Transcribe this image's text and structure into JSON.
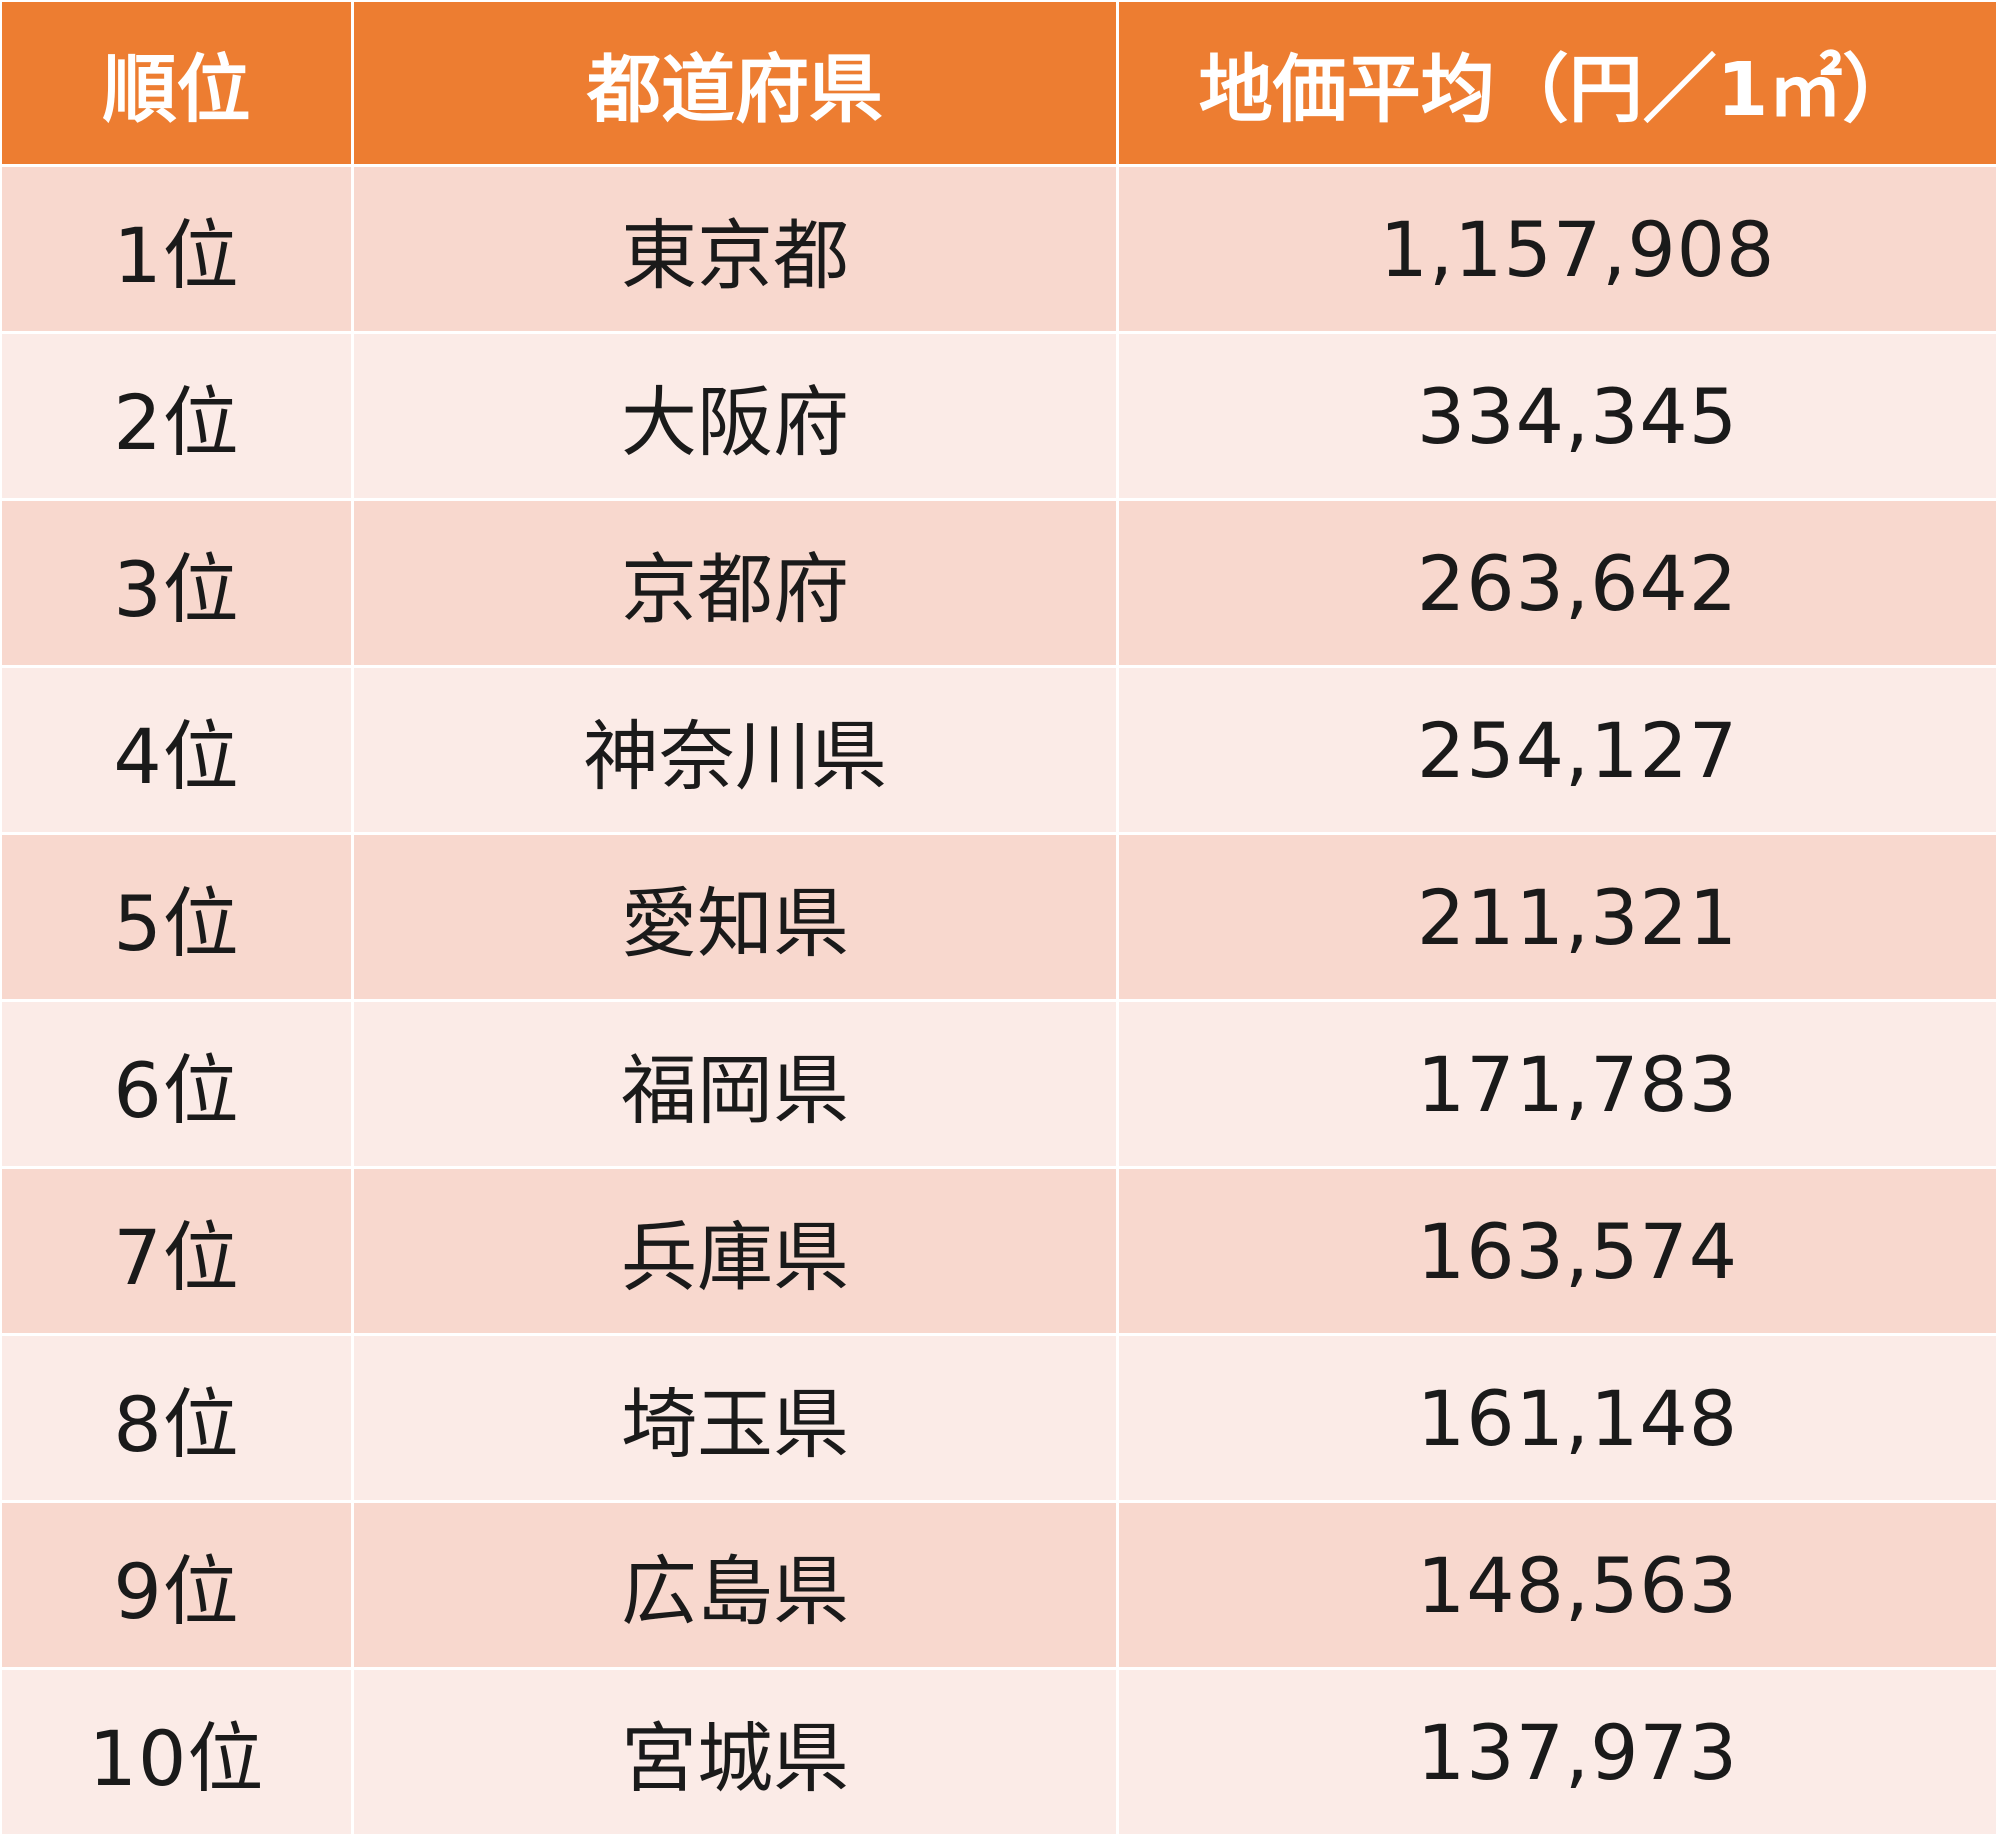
{
  "table": {
    "headers": {
      "rank": "順位",
      "prefecture": "都道府県",
      "price": "地価平均（円／1㎡）"
    },
    "rows": [
      {
        "rank": "1位",
        "prefecture": "東京都",
        "price": "1,157,908"
      },
      {
        "rank": "2位",
        "prefecture": "大阪府",
        "price": "334,345"
      },
      {
        "rank": "3位",
        "prefecture": "京都府",
        "price": "263,642"
      },
      {
        "rank": "4位",
        "prefecture": "神奈川県",
        "price": "254,127"
      },
      {
        "rank": "5位",
        "prefecture": "愛知県",
        "price": "211,321"
      },
      {
        "rank": "6位",
        "prefecture": "福岡県",
        "price": "171,783"
      },
      {
        "rank": "7位",
        "prefecture": "兵庫県",
        "price": "163,574"
      },
      {
        "rank": "8位",
        "prefecture": "埼玉県",
        "price": "161,148"
      },
      {
        "rank": "9位",
        "prefecture": "広島県",
        "price": "148,563"
      },
      {
        "rank": "10位",
        "prefecture": "宮城県",
        "price": "137,973"
      }
    ]
  },
  "colors": {
    "header_bg": "#ed7d31",
    "row_dark_bg": "#f8d8ce",
    "row_light_bg": "#fbebe7",
    "text": "#1a1a1a"
  }
}
